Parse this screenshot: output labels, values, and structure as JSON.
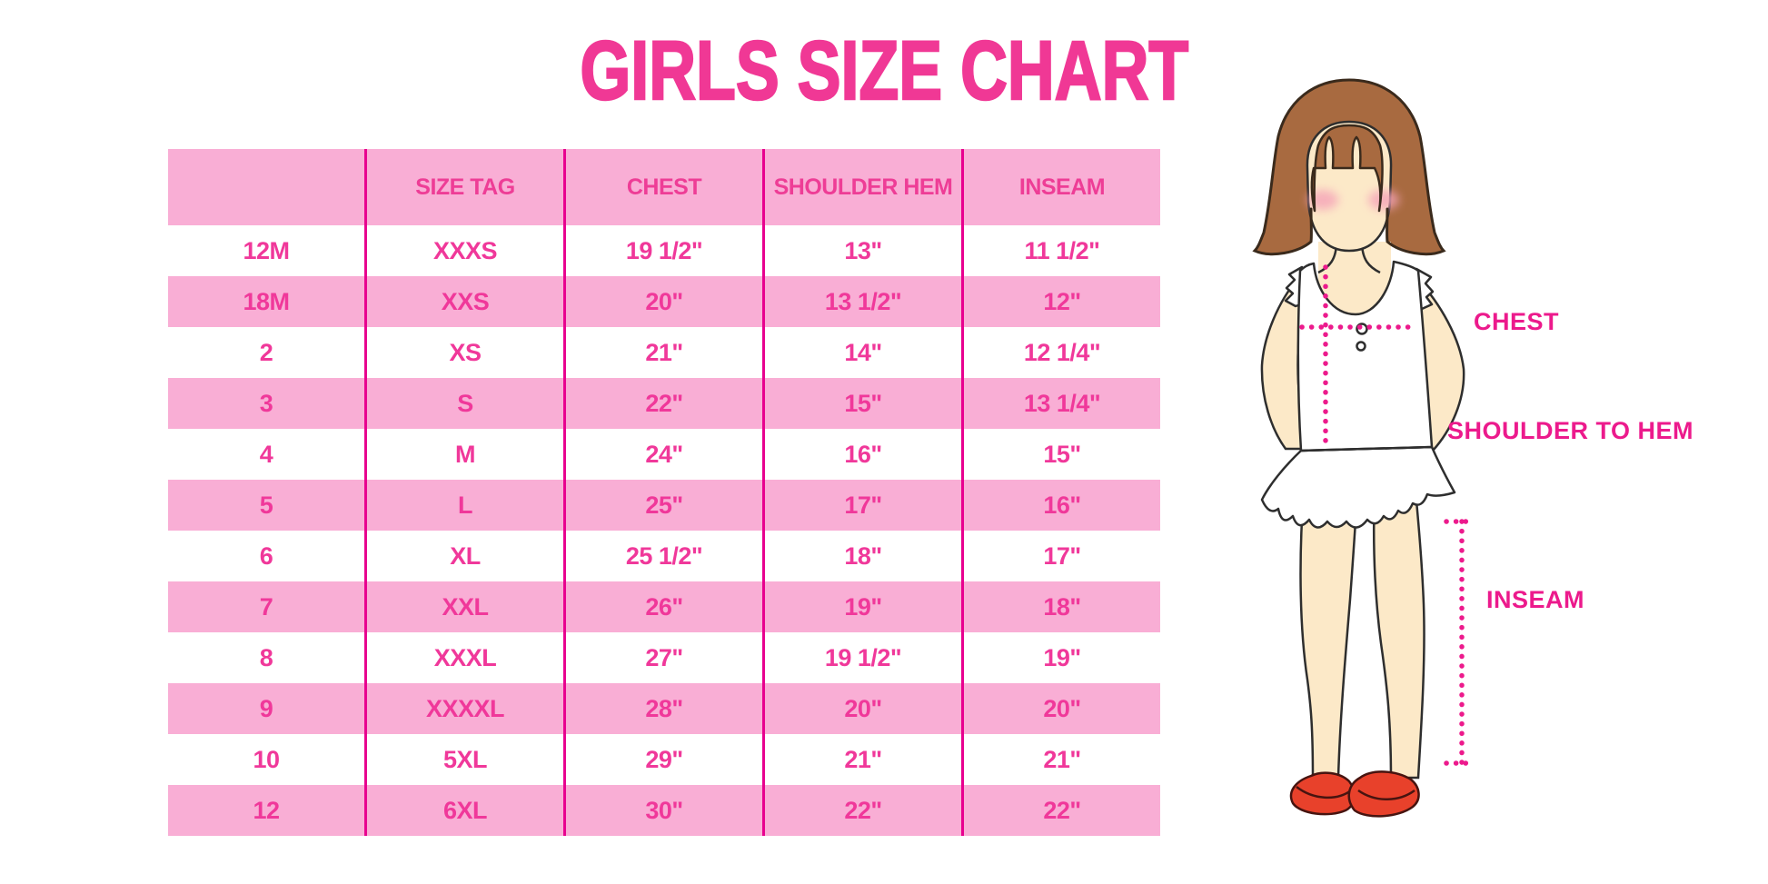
{
  "title": "GIRLS SIZE CHART",
  "chart_data": {
    "type": "table",
    "title": "GIRLS SIZE CHART",
    "columns": [
      "",
      "SIZE TAG",
      "CHEST",
      "SHOULDER HEM",
      "INSEAM"
    ],
    "rows": [
      [
        "12M",
        "XXXS",
        "19 1/2\"",
        "13\"",
        "11 1/2\""
      ],
      [
        "18M",
        "XXS",
        "20\"",
        "13 1/2\"",
        "12\""
      ],
      [
        "2",
        "XS",
        "21\"",
        "14\"",
        "12 1/4\""
      ],
      [
        "3",
        "S",
        "22\"",
        "15\"",
        "13 1/4\""
      ],
      [
        "4",
        "M",
        "24\"",
        "16\"",
        "15\""
      ],
      [
        "5",
        "L",
        "25\"",
        "17\"",
        "16\""
      ],
      [
        "6",
        "XL",
        "25 1/2\"",
        "18\"",
        "17\""
      ],
      [
        "7",
        "XXL",
        "26\"",
        "19\"",
        "18\""
      ],
      [
        "8",
        "XXXL",
        "27\"",
        "19 1/2\"",
        "19\""
      ],
      [
        "9",
        "XXXXL",
        "28\"",
        "20\"",
        "20\""
      ],
      [
        "10",
        "5XL",
        "29\"",
        "21\"",
        "21\""
      ],
      [
        "12",
        "6XL",
        "30\"",
        "22\"",
        "22\""
      ]
    ],
    "row_striping": "alternating white / pink starting white",
    "legend_position": "none",
    "grid": "vertical magenta column separators only"
  },
  "measurement_labels": {
    "chest": "CHEST",
    "shoulder_to_hem": "SHOULDER TO HEM",
    "inseam": "INSEAM"
  },
  "colors": {
    "title_pink": "#F03895",
    "table_text_pink": "#F0389A",
    "row_pink": "#F9AED5",
    "column_separator_magenta": "#E8008F",
    "measurement_magenta": "#EC1A8C",
    "hair_brown": "#A86A40",
    "skin_tone": "#FCE9C8",
    "dress_white": "#FFFFFF",
    "shoe_red": "#E8412B",
    "background": "#FFFFFF"
  }
}
